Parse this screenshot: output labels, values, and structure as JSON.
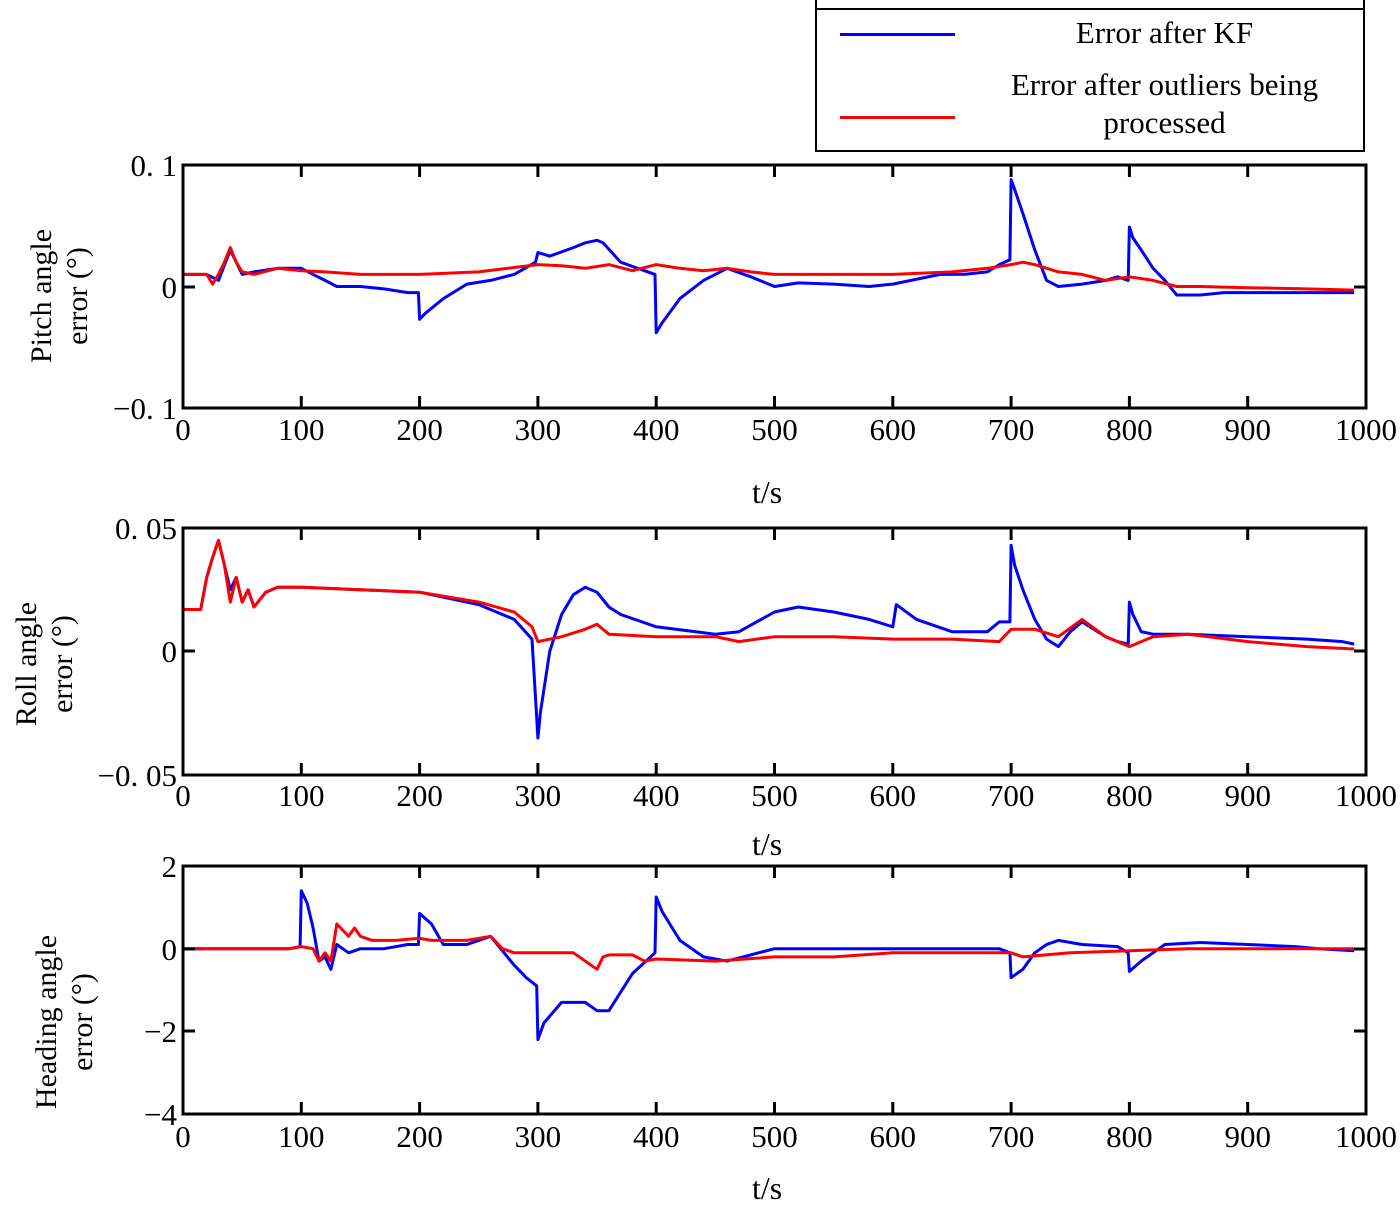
{
  "legend": {
    "items": [
      {
        "label": "Error after KF",
        "color": "#0000FF"
      },
      {
        "label": "Error after outliers being processed",
        "color": "#FF0000"
      }
    ]
  },
  "colors": {
    "kf": "#0000FF",
    "processed": "#FF0000",
    "axis": "#000000"
  },
  "plots": [
    {
      "ylabel_line1": "Pitch angle",
      "ylabel_line2": "error (°)",
      "xlabel": "t/s",
      "yticks": [
        "0. 1",
        "0",
        "−0. 1"
      ],
      "xticks": [
        "0",
        "100",
        "200",
        "300",
        "400",
        "500",
        "600",
        "700",
        "800",
        "900",
        "1000"
      ]
    },
    {
      "ylabel_line1": "Roll angle",
      "ylabel_line2": "error (°)",
      "xlabel": "t/s",
      "yticks": [
        "0. 05",
        "0",
        "−0. 05"
      ],
      "xticks": [
        "0",
        "100",
        "200",
        "300",
        "400",
        "500",
        "600",
        "700",
        "800",
        "900",
        "1000"
      ]
    },
    {
      "ylabel_line1": "Heading angle",
      "ylabel_line2": "error (°)",
      "xlabel": "t/s",
      "yticks": [
        "2",
        "0",
        "−2",
        "−4"
      ],
      "xticks": [
        "0",
        "100",
        "200",
        "300",
        "400",
        "500",
        "600",
        "700",
        "800",
        "900",
        "1000"
      ]
    }
  ],
  "chart_data": [
    {
      "type": "line",
      "title": "",
      "xlabel": "t/s",
      "ylabel": "Pitch angle error (°)",
      "xlim": [
        0,
        1000
      ],
      "ylim": [
        -0.1,
        0.1
      ],
      "yticks": [
        0.1,
        0,
        -0.1
      ],
      "grid": false,
      "legend_position": "top-right, above plots",
      "series": [
        {
          "name": "Error after KF",
          "color": "#0000FF",
          "x": [
            0,
            20,
            30,
            40,
            50,
            60,
            80,
            100,
            110,
            120,
            130,
            150,
            170,
            190,
            199,
            200,
            205,
            220,
            240,
            260,
            280,
            298,
            300,
            310,
            330,
            340,
            350,
            355,
            370,
            390,
            399,
            400,
            405,
            420,
            440,
            460,
            480,
            500,
            520,
            550,
            580,
            600,
            640,
            660,
            680,
            690,
            699,
            700,
            703,
            710,
            720,
            730,
            740,
            760,
            780,
            790,
            799,
            800,
            803,
            810,
            820,
            830,
            840,
            860,
            880,
            900,
            930,
            960,
            990
          ],
          "y": [
            0.01,
            0.01,
            0.005,
            0.03,
            0.01,
            0.012,
            0.015,
            0.015,
            0.01,
            0.005,
            0.0,
            0.0,
            -0.002,
            -0.005,
            -0.005,
            -0.027,
            -0.022,
            -0.01,
            0.002,
            0.005,
            0.01,
            0.02,
            0.028,
            0.025,
            0.032,
            0.036,
            0.038,
            0.036,
            0.02,
            0.013,
            0.01,
            -0.038,
            -0.03,
            -0.01,
            0.005,
            0.015,
            0.008,
            0.0,
            0.003,
            0.002,
            0.0,
            0.002,
            0.01,
            0.01,
            0.012,
            0.018,
            0.022,
            0.088,
            0.08,
            0.06,
            0.03,
            0.005,
            0.0,
            0.002,
            0.005,
            0.008,
            0.005,
            0.049,
            0.04,
            0.03,
            0.015,
            0.005,
            -0.007,
            -0.007,
            -0.005,
            -0.005,
            -0.005,
            -0.005,
            -0.005
          ]
        },
        {
          "name": "Error after outliers being processed",
          "color": "#FF0000",
          "x": [
            0,
            20,
            25,
            30,
            35,
            40,
            45,
            50,
            60,
            80,
            100,
            120,
            150,
            200,
            250,
            300,
            320,
            340,
            360,
            380,
            400,
            420,
            440,
            460,
            480,
            500,
            550,
            600,
            650,
            680,
            700,
            710,
            720,
            740,
            760,
            780,
            800,
            820,
            840,
            860,
            900,
            950,
            990
          ],
          "y": [
            0.01,
            0.01,
            0.002,
            0.01,
            0.02,
            0.032,
            0.02,
            0.012,
            0.01,
            0.015,
            0.013,
            0.012,
            0.01,
            0.01,
            0.012,
            0.018,
            0.017,
            0.015,
            0.018,
            0.013,
            0.018,
            0.015,
            0.013,
            0.015,
            0.012,
            0.01,
            0.01,
            0.01,
            0.012,
            0.015,
            0.018,
            0.02,
            0.018,
            0.012,
            0.01,
            0.005,
            0.008,
            0.005,
            0.0,
            0.0,
            -0.001,
            -0.002,
            -0.003
          ]
        }
      ]
    },
    {
      "type": "line",
      "title": "",
      "xlabel": "t/s",
      "ylabel": "Roll angle error (°)",
      "xlim": [
        0,
        1000
      ],
      "ylim": [
        -0.05,
        0.05
      ],
      "yticks": [
        0.05,
        0,
        -0.05
      ],
      "grid": false,
      "legend_position": "top-right, above plots",
      "series": [
        {
          "name": "Error after KF",
          "color": "#0000FF",
          "x": [
            0,
            15,
            20,
            25,
            30,
            35,
            40,
            45,
            50,
            55,
            60,
            70,
            80,
            100,
            150,
            200,
            250,
            280,
            295,
            300,
            302,
            310,
            320,
            330,
            340,
            350,
            360,
            370,
            400,
            450,
            470,
            500,
            520,
            550,
            580,
            600,
            603,
            620,
            650,
            680,
            690,
            699,
            700,
            703,
            710,
            720,
            730,
            740,
            750,
            760,
            780,
            790,
            799,
            800,
            803,
            810,
            820,
            850,
            900,
            950,
            980,
            990
          ],
          "y": [
            0.017,
            0.017,
            0.03,
            0.038,
            0.045,
            0.035,
            0.025,
            0.03,
            0.02,
            0.025,
            0.018,
            0.024,
            0.026,
            0.026,
            0.025,
            0.024,
            0.019,
            0.013,
            0.005,
            -0.035,
            -0.025,
            0.0,
            0.015,
            0.023,
            0.026,
            0.024,
            0.018,
            0.015,
            0.01,
            0.007,
            0.008,
            0.016,
            0.018,
            0.016,
            0.013,
            0.01,
            0.019,
            0.013,
            0.008,
            0.008,
            0.012,
            0.012,
            0.043,
            0.035,
            0.025,
            0.013,
            0.005,
            0.002,
            0.008,
            0.012,
            0.006,
            0.004,
            0.003,
            0.02,
            0.015,
            0.008,
            0.007,
            0.007,
            0.006,
            0.005,
            0.004,
            0.003
          ]
        },
        {
          "name": "Error after outliers being processed",
          "color": "#FF0000",
          "x": [
            0,
            15,
            20,
            25,
            30,
            35,
            40,
            45,
            50,
            55,
            60,
            70,
            80,
            100,
            150,
            200,
            250,
            280,
            295,
            300,
            320,
            340,
            350,
            360,
            400,
            450,
            470,
            500,
            550,
            600,
            650,
            690,
            700,
            720,
            740,
            760,
            780,
            800,
            820,
            850,
            900,
            950,
            990
          ],
          "y": [
            0.017,
            0.017,
            0.03,
            0.038,
            0.045,
            0.035,
            0.02,
            0.03,
            0.02,
            0.025,
            0.018,
            0.024,
            0.026,
            0.026,
            0.025,
            0.024,
            0.02,
            0.016,
            0.01,
            0.004,
            0.006,
            0.009,
            0.011,
            0.007,
            0.006,
            0.006,
            0.004,
            0.006,
            0.006,
            0.005,
            0.005,
            0.004,
            0.009,
            0.009,
            0.006,
            0.013,
            0.006,
            0.002,
            0.006,
            0.007,
            0.004,
            0.002,
            0.001
          ]
        }
      ]
    },
    {
      "type": "line",
      "title": "",
      "xlabel": "t/s",
      "ylabel": "Heading angle error (°)",
      "xlim": [
        0,
        1000
      ],
      "ylim": [
        -4,
        2
      ],
      "yticks": [
        2,
        0,
        -2,
        -4
      ],
      "grid": false,
      "legend_position": "top-right, above plots",
      "series": [
        {
          "name": "Error after KF",
          "color": "#0000FF",
          "x": [
            0,
            50,
            90,
            99,
            100,
            105,
            110,
            115,
            120,
            125,
            130,
            140,
            150,
            170,
            190,
            199,
            200,
            210,
            220,
            240,
            260,
            280,
            290,
            299,
            300,
            305,
            320,
            340,
            350,
            360,
            380,
            399,
            400,
            405,
            420,
            440,
            460,
            500,
            550,
            600,
            650,
            690,
            699,
            700,
            710,
            720,
            730,
            740,
            760,
            790,
            799,
            800,
            810,
            830,
            860,
            900,
            940,
            960,
            990
          ],
          "y": [
            0,
            0,
            0,
            0.05,
            1.4,
            1.1,
            0.5,
            -0.3,
            -0.2,
            -0.5,
            0.1,
            -0.1,
            0.0,
            0.0,
            0.1,
            0.1,
            0.85,
            0.6,
            0.1,
            0.1,
            0.3,
            -0.4,
            -0.7,
            -0.9,
            -2.2,
            -1.8,
            -1.3,
            -1.3,
            -1.5,
            -1.5,
            -0.6,
            -0.1,
            1.25,
            0.9,
            0.2,
            -0.2,
            -0.3,
            0.0,
            0.0,
            0.0,
            0.0,
            0.0,
            -0.1,
            -0.7,
            -0.5,
            -0.1,
            0.1,
            0.2,
            0.1,
            0.05,
            -0.1,
            -0.55,
            -0.3,
            0.1,
            0.15,
            0.1,
            0.05,
            0.0,
            -0.05
          ]
        },
        {
          "name": "Error after outliers being processed",
          "color": "#FF0000",
          "x": [
            0,
            50,
            90,
            100,
            110,
            115,
            120,
            125,
            130,
            140,
            145,
            150,
            160,
            180,
            200,
            210,
            240,
            260,
            270,
            280,
            300,
            330,
            350,
            355,
            360,
            380,
            390,
            400,
            450,
            500,
            550,
            600,
            650,
            700,
            710,
            750,
            800,
            850,
            900,
            950,
            990
          ],
          "y": [
            0,
            0,
            0,
            0.05,
            0.0,
            -0.3,
            -0.1,
            -0.3,
            0.6,
            0.3,
            0.5,
            0.3,
            0.2,
            0.2,
            0.25,
            0.2,
            0.2,
            0.3,
            0.0,
            -0.1,
            -0.1,
            -0.1,
            -0.5,
            -0.2,
            -0.15,
            -0.15,
            -0.3,
            -0.25,
            -0.3,
            -0.2,
            -0.2,
            -0.1,
            -0.1,
            -0.1,
            -0.2,
            -0.1,
            -0.05,
            0.0,
            0.0,
            0.0,
            0.0
          ]
        }
      ]
    }
  ]
}
